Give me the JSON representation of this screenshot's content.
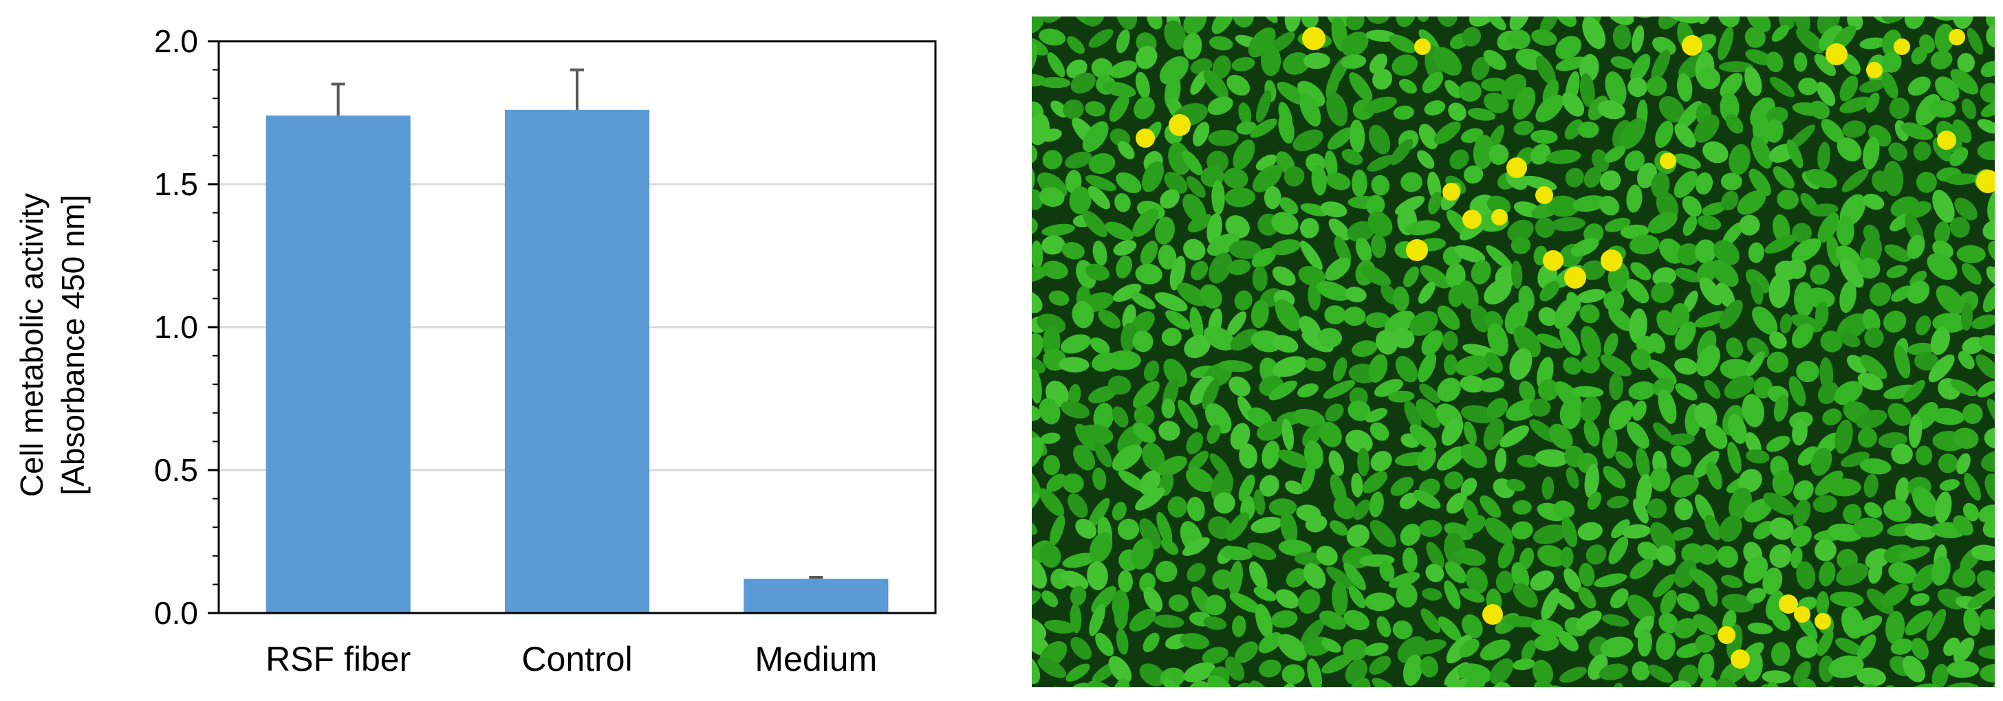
{
  "chart_data": {
    "type": "bar",
    "categories": [
      "RSF fiber",
      "Control",
      "Medium"
    ],
    "values": [
      1.74,
      1.76,
      0.12
    ],
    "error_upper": [
      0.11,
      0.14,
      0.005
    ],
    "ylabel_line1": "Cell metabolic activity",
    "ylabel_line2": "[Absorbance 450 nm]",
    "ylim": [
      0,
      2.0
    ],
    "yticks": [
      0.0,
      0.5,
      1.0,
      1.5,
      2.0
    ],
    "ytick_labels": [
      "0.0",
      "0.5",
      "1.0",
      "1.5",
      "2.0"
    ],
    "grid": true,
    "bar_color": "#5b9bd5",
    "error_color": "#595959"
  },
  "micrograph": {
    "cell_color": "#2fa81f",
    "background_color": "#0e3a0e",
    "marker_color": "#f2e600"
  }
}
